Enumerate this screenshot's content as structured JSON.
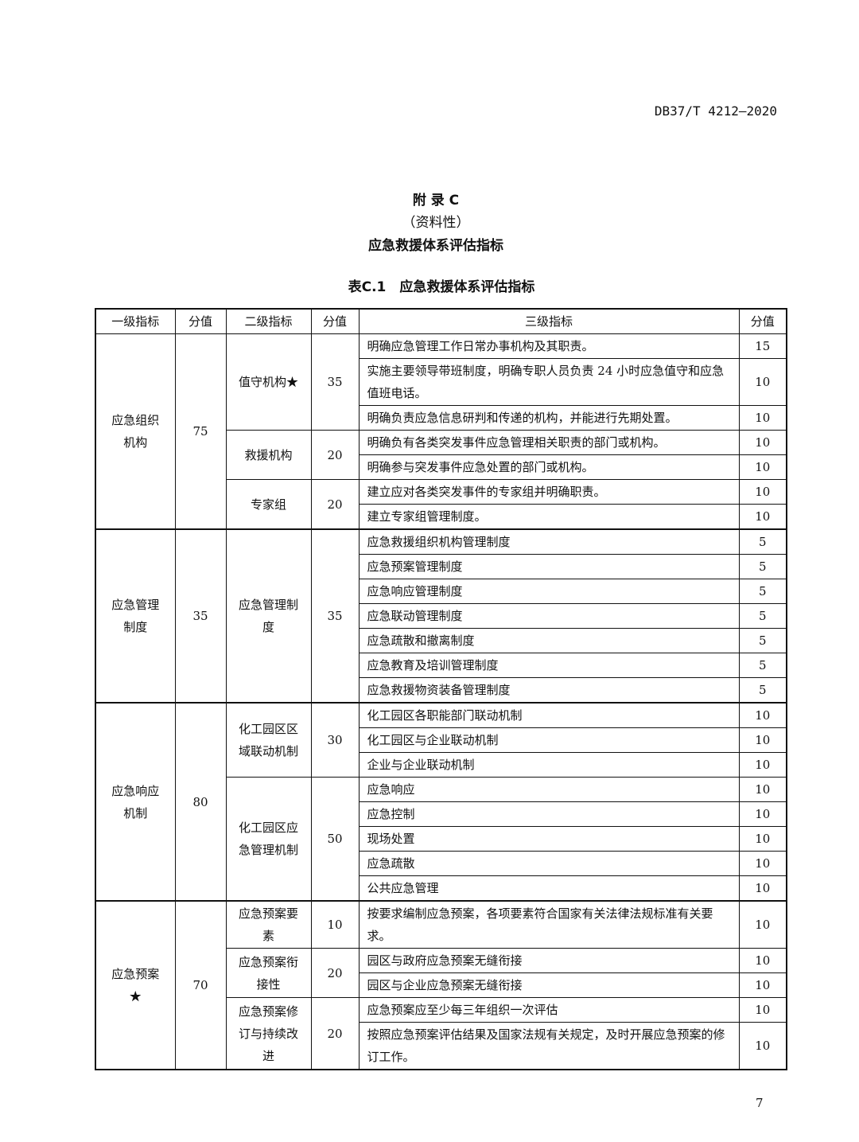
{
  "header": {
    "doc_code": "DB37/T 4212—2020"
  },
  "appendix": {
    "label": "附 录 C",
    "nature": "（资料性）",
    "title": "应急救援体系评估指标"
  },
  "table": {
    "caption": "表C.1　应急救援体系评估指标",
    "columns": [
      "一级指标",
      "分值",
      "二级指标",
      "分值",
      "三级指标",
      "分值"
    ],
    "groups": [
      {
        "name": "应急组织机构",
        "score": "75",
        "subs": [
          {
            "name": "值守机构★",
            "score": "35",
            "items": [
              {
                "text": "明确应急管理工作日常办事机构及其职责。",
                "score": "15"
              },
              {
                "text": "实施主要领导带班制度，明确专职人员负责 24 小时应急值守和应急值班电话。",
                "score": "10"
              },
              {
                "text": "明确负责应急信息研判和传递的机构，并能进行先期处置。",
                "score": "10"
              }
            ]
          },
          {
            "name": "救援机构",
            "score": "20",
            "items": [
              {
                "text": "明确负有各类突发事件应急管理相关职责的部门或机构。",
                "score": "10"
              },
              {
                "text": "明确参与突发事件应急处置的部门或机构。",
                "score": "10"
              }
            ]
          },
          {
            "name": "专家组",
            "score": "20",
            "items": [
              {
                "text": "建立应对各类突发事件的专家组并明确职责。",
                "score": "10"
              },
              {
                "text": "建立专家组管理制度。",
                "score": "10"
              }
            ]
          }
        ]
      },
      {
        "name": "应急管理制度",
        "score": "35",
        "subs": [
          {
            "name": "应急管理制度",
            "score": "35",
            "items": [
              {
                "text": "应急救援组织机构管理制度",
                "score": "5"
              },
              {
                "text": "应急预案管理制度",
                "score": "5"
              },
              {
                "text": "应急响应管理制度",
                "score": "5"
              },
              {
                "text": "应急联动管理制度",
                "score": "5"
              },
              {
                "text": "应急疏散和撤离制度",
                "score": "5"
              },
              {
                "text": "应急教育及培训管理制度",
                "score": "5"
              },
              {
                "text": "应急救援物资装备管理制度",
                "score": "5"
              }
            ]
          }
        ]
      },
      {
        "name": "应急响应机制",
        "score": "80",
        "subs": [
          {
            "name": "化工园区区域联动机制",
            "score": "30",
            "items": [
              {
                "text": "化工园区各职能部门联动机制",
                "score": "10"
              },
              {
                "text": "化工园区与企业联动机制",
                "score": "10"
              },
              {
                "text": "企业与企业联动机制",
                "score": "10"
              }
            ]
          },
          {
            "name": "化工园区应急管理机制",
            "score": "50",
            "items": [
              {
                "text": "应急响应",
                "score": "10"
              },
              {
                "text": "应急控制",
                "score": "10"
              },
              {
                "text": "现场处置",
                "score": "10"
              },
              {
                "text": "应急疏散",
                "score": "10"
              },
              {
                "text": "公共应急管理",
                "score": "10"
              }
            ]
          }
        ]
      },
      {
        "name": "应急预案★",
        "score": "70",
        "subs": [
          {
            "name": "应急预案要素",
            "score": "10",
            "items": [
              {
                "text": "按要求编制应急预案，各项要素符合国家有关法律法规标准有关要求。",
                "score": "10"
              }
            ]
          },
          {
            "name": "应急预案衔接性",
            "score": "20",
            "items": [
              {
                "text": "园区与政府应急预案无缝衔接",
                "score": "10"
              },
              {
                "text": "园区与企业应急预案无缝衔接",
                "score": "10"
              }
            ]
          },
          {
            "name": "应急预案修订与持续改进",
            "score": "20",
            "items": [
              {
                "text": "应急预案应至少每三年组织一次评估",
                "score": "10"
              },
              {
                "text": "按照应急预案评估结果及国家法规有关规定，及时开展应急预案的修订工作。",
                "score": "10"
              }
            ]
          }
        ]
      }
    ]
  },
  "footer": {
    "page_number": "7"
  }
}
